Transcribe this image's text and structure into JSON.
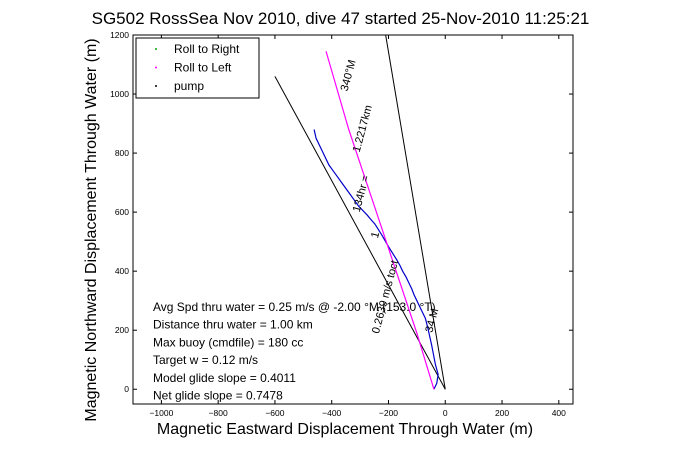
{
  "chart_data": {
    "type": "line",
    "title": "SG502 RossSea Nov 2010, dive 47 started 25-Nov-2010 11:25:21",
    "xlabel": "Magnetic Eastward Displacement Through Water (m)",
    "ylabel": "Magnetic Northward Displacement Through Water (m)",
    "xlim": [
      -1100,
      450
    ],
    "ylim": [
      -50,
      1200
    ],
    "xticks": [
      -1000,
      -800,
      -600,
      -400,
      -200,
      0,
      200,
      400
    ],
    "yticks": [
      0,
      200,
      400,
      600,
      800,
      1000,
      1200
    ],
    "grid": false,
    "legend_position": "top-left",
    "legend": [
      {
        "label": "Roll to Right",
        "color": "#00aa00"
      },
      {
        "label": "Roll to Left",
        "color": "#ff00ff"
      },
      {
        "label": "pump",
        "color": "#000000"
      }
    ],
    "series": [
      {
        "color": "#0000cc",
        "x": [
          -40,
          -30,
          -25,
          -35,
          -42,
          -48,
          -55,
          -62,
          -70,
          -80,
          -90,
          -100,
          -110,
          -118,
          -128,
          -138,
          -150,
          -160,
          -172,
          -185,
          -198,
          -210,
          -222,
          -235,
          -248,
          -262,
          -275,
          -290,
          -305,
          -320,
          -335,
          -350,
          -365,
          -380,
          -395,
          -410,
          -425,
          -440,
          -455,
          -462
        ],
        "y": [
          0,
          20,
          50,
          85,
          120,
          150,
          180,
          210,
          240,
          260,
          280,
          300,
          320,
          340,
          360,
          380,
          400,
          420,
          440,
          460,
          480,
          500,
          520,
          540,
          560,
          575,
          590,
          605,
          620,
          640,
          660,
          680,
          700,
          720,
          740,
          760,
          790,
          820,
          850,
          880
        ]
      },
      {
        "color": "#ff00ff",
        "x": [
          -40,
          -100,
          -180,
          -260,
          -340,
          -420
        ],
        "y": [
          0,
          190,
          420,
          650,
          880,
          1145
        ]
      }
    ],
    "heading_lines": [
      {
        "x": [
          0,
          -600
        ],
        "y": [
          0,
          1060
        ]
      },
      {
        "x": [
          0,
          -210
        ],
        "y": [
          0,
          1200
        ]
      }
    ],
    "annotations": [
      {
        "text": "340°M",
        "x": -330,
        "y": 1060,
        "rotate": 75
      },
      {
        "text": "1.2217km",
        "x": -280,
        "y": 880,
        "rotate": 75
      },
      {
        "text": "134hr = ",
        "x": -285,
        "y": 660,
        "rotate": 75
      },
      {
        "text": "1",
        "x": -235,
        "y": 520,
        "rotate": 75
      },
      {
        "text": "0.2639 m/s toct",
        "x": -200,
        "y": 310,
        "rotate": 75
      },
      {
        "text": "34 M",
        "x": -35,
        "y": 230,
        "rotate": 75
      }
    ],
    "stats": [
      "Avg Spd thru water =  0.25 m/s @ -2.00  °M (153.0 °T)",
      "Distance thru water =  1.00 km",
      "Max buoy (cmdfile) = 180 cc",
      "Target w = 0.12 m/s",
      "Model glide slope = 0.4011",
      "Net glide slope = 0.7478"
    ]
  }
}
